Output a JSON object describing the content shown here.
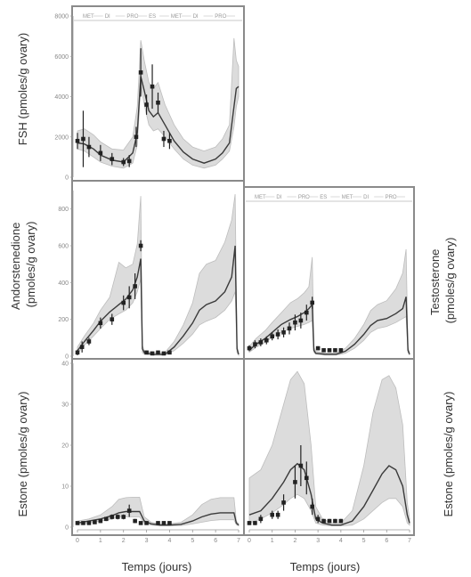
{
  "x_axis_label": "Temps (jours)",
  "colors": {
    "band": "#dcdcdc",
    "band_edge": "#bdbdbd",
    "line": "#3a3a3a",
    "marker": "#222222",
    "frame": "#8a8a8a",
    "axis": "#999999"
  },
  "chart_data": [
    {
      "id": "fsh",
      "type": "line",
      "ylabel": "FSH (pmoles/g ovary)",
      "xlabel": "",
      "xlim": [
        0,
        7
      ],
      "ylim": [
        0,
        8000
      ],
      "yticks": [
        0,
        2000,
        4000,
        6000,
        8000
      ],
      "ytick_labels": [
        "0",
        "2000",
        "4000",
        "6000",
        "8000"
      ],
      "xticks": [],
      "phase_labels": [
        "MET",
        "DI",
        "PRO",
        "ES",
        "MET",
        "DI",
        "PRO"
      ],
      "model": {
        "x": [
          0,
          0.3,
          0.7,
          1.0,
          1.5,
          2.0,
          2.4,
          2.6,
          2.75,
          2.9,
          3.1,
          3.3,
          3.5,
          3.8,
          4.2,
          4.6,
          5.0,
          5.5,
          6.0,
          6.3,
          6.6,
          6.8,
          6.9,
          7.0
        ],
        "lower": [
          1400,
          1300,
          1000,
          750,
          550,
          450,
          700,
          1600,
          4600,
          3600,
          2600,
          2300,
          2400,
          2000,
          1400,
          900,
          600,
          450,
          600,
          900,
          1300,
          2500,
          3500,
          4000
        ],
        "mean": [
          1700,
          1650,
          1400,
          1100,
          850,
          750,
          1200,
          2200,
          5000,
          4300,
          3300,
          3000,
          3200,
          2600,
          1800,
          1250,
          900,
          700,
          900,
          1200,
          1700,
          3500,
          4400,
          4500
        ],
        "upper": [
          2300,
          2400,
          2100,
          1750,
          1400,
          1350,
          2000,
          3500,
          6800,
          5800,
          4700,
          4400,
          4700,
          3600,
          2600,
          1900,
          1500,
          1300,
          1500,
          1900,
          2600,
          6900,
          5800,
          5500
        ]
      },
      "observations": {
        "x": [
          0,
          0.25,
          0.5,
          1.0,
          1.5,
          2.0,
          2.25,
          2.55,
          2.75,
          3.0,
          3.25,
          3.5,
          3.75,
          4.0
        ],
        "y": [
          1800,
          1900,
          1500,
          1200,
          900,
          750,
          800,
          2000,
          5200,
          3600,
          4500,
          3700,
          1900,
          1800
        ],
        "yerr": [
          400,
          1400,
          500,
          400,
          300,
          200,
          300,
          500,
          1200,
          500,
          1100,
          500,
          400,
          400
        ]
      }
    },
    {
      "id": "androstenedione",
      "type": "line",
      "ylabel": "Andorstenedione\n(pmoles/g ovary)",
      "xlabel": "",
      "xlim": [
        0,
        7
      ],
      "ylim": [
        0,
        900
      ],
      "yticks": [
        0,
        200,
        400,
        600,
        800
      ],
      "ytick_labels": [
        "0",
        "200",
        "400",
        "600",
        "800"
      ],
      "xticks": [],
      "phase_labels": [],
      "model": {
        "x": [
          0,
          0.3,
          0.7,
          1.0,
          1.4,
          1.8,
          2.1,
          2.4,
          2.6,
          2.75,
          2.82,
          2.9,
          3.3,
          3.8,
          4.2,
          4.6,
          5.0,
          5.3,
          5.6,
          6.0,
          6.4,
          6.7,
          6.85,
          6.93,
          7.0
        ],
        "lower": [
          15,
          60,
          110,
          150,
          200,
          230,
          250,
          290,
          350,
          420,
          20,
          10,
          5,
          5,
          30,
          70,
          120,
          170,
          190,
          210,
          250,
          300,
          350,
          20,
          5
        ],
        "mean": [
          30,
          80,
          140,
          190,
          240,
          280,
          310,
          360,
          430,
          530,
          40,
          20,
          10,
          10,
          50,
          110,
          180,
          250,
          280,
          300,
          350,
          430,
          600,
          40,
          10
        ],
        "upper": [
          50,
          110,
          180,
          250,
          320,
          510,
          480,
          500,
          610,
          870,
          60,
          30,
          20,
          20,
          80,
          170,
          290,
          450,
          500,
          520,
          620,
          740,
          880,
          60,
          15
        ]
      },
      "observations": {
        "x": [
          0.0,
          0.2,
          0.5,
          1.0,
          1.5,
          2.0,
          2.25,
          2.5,
          2.75,
          3.0,
          3.25,
          3.5,
          3.75,
          4.0
        ],
        "y": [
          20,
          50,
          80,
          180,
          200,
          290,
          320,
          380,
          600,
          20,
          15,
          20,
          15,
          20
        ],
        "yerr": [
          15,
          30,
          20,
          30,
          30,
          40,
          60,
          70,
          30,
          10,
          10,
          10,
          10,
          10
        ]
      }
    },
    {
      "id": "testosterone",
      "type": "line",
      "ylabel": "Testosterone\n(pmoles/g ovary)",
      "xlabel": "",
      "xlim": [
        0,
        7
      ],
      "ylim": [
        0,
        800
      ],
      "yticks": [],
      "ytick_labels": [],
      "xticks": [],
      "phase_labels": [
        "MET",
        "DI",
        "PRO",
        "ES",
        "MET",
        "DI",
        "PRO"
      ],
      "model": {
        "x": [
          0,
          0.3,
          0.7,
          1.0,
          1.4,
          1.8,
          2.1,
          2.4,
          2.6,
          2.75,
          2.82,
          2.9,
          3.3,
          3.8,
          4.2,
          4.6,
          5.0,
          5.3,
          5.6,
          6.0,
          6.4,
          6.7,
          6.85,
          6.93,
          7.0
        ],
        "lower": [
          20,
          45,
          70,
          95,
          120,
          140,
          150,
          160,
          170,
          180,
          20,
          10,
          5,
          5,
          15,
          40,
          80,
          120,
          140,
          150,
          170,
          190,
          200,
          20,
          5
        ],
        "mean": [
          30,
          60,
          90,
          120,
          160,
          185,
          200,
          220,
          240,
          260,
          30,
          15,
          10,
          10,
          25,
          60,
          110,
          155,
          180,
          190,
          215,
          240,
          300,
          30,
          10
        ],
        "upper": [
          50,
          90,
          130,
          170,
          220,
          270,
          290,
          320,
          350,
          500,
          45,
          25,
          15,
          15,
          40,
          90,
          160,
          230,
          260,
          280,
          340,
          420,
          540,
          45,
          15
        ]
      },
      "observations": {
        "x": [
          0.0,
          0.25,
          0.5,
          0.75,
          1.0,
          1.25,
          1.5,
          1.75,
          2.0,
          2.25,
          2.5,
          2.75,
          3.0,
          3.25,
          3.5,
          3.75,
          4.0
        ],
        "y": [
          40,
          60,
          70,
          80,
          100,
          110,
          120,
          140,
          170,
          180,
          220,
          270,
          40,
          30,
          30,
          30,
          30
        ],
        "yerr": [
          15,
          20,
          20,
          20,
          20,
          25,
          25,
          30,
          40,
          40,
          40,
          30,
          10,
          10,
          10,
          10,
          10
        ]
      }
    },
    {
      "id": "estrone_left",
      "type": "line",
      "ylabel": "Estone (pmoles/g ovary)",
      "xlabel": "Temps (jours)",
      "xlim": [
        0,
        7
      ],
      "ylim": [
        0,
        40
      ],
      "yticks": [
        0,
        10,
        20,
        30,
        40
      ],
      "ytick_labels": [
        "0",
        "10",
        "20",
        "30",
        "40"
      ],
      "xticks": [
        0,
        1,
        2,
        3,
        4,
        5,
        6,
        7
      ],
      "xtick_labels": [
        "0",
        "1",
        "2",
        "3",
        "4",
        "5",
        "6",
        "7"
      ],
      "phase_labels": [],
      "model": {
        "x": [
          0,
          0.5,
          1.0,
          1.5,
          1.8,
          2.1,
          2.4,
          2.7,
          2.9,
          3.2,
          3.6,
          4.0,
          4.5,
          5.0,
          5.4,
          5.8,
          6.2,
          6.6,
          6.8,
          6.9,
          7.0
        ],
        "lower": [
          0.5,
          1,
          1.5,
          2,
          2.5,
          2.5,
          2.5,
          2.5,
          1,
          0.5,
          0.3,
          0.3,
          0.4,
          0.8,
          1.2,
          1.6,
          1.8,
          1.8,
          1.8,
          0.6,
          0.3
        ],
        "mean": [
          1,
          1.5,
          2,
          2.8,
          3.5,
          3.8,
          3.8,
          3.8,
          1.5,
          0.8,
          0.5,
          0.5,
          0.7,
          1.5,
          2.5,
          3.2,
          3.5,
          3.5,
          3.5,
          1.0,
          0.5
        ],
        "upper": [
          1.5,
          2,
          3,
          5,
          6.8,
          7.2,
          7.3,
          7.3,
          2.5,
          1.2,
          0.8,
          0.8,
          1.2,
          3.0,
          5.5,
          6.8,
          7.2,
          7.2,
          7.2,
          1.5,
          0.8
        ]
      },
      "observations": {
        "x": [
          0.0,
          0.25,
          0.5,
          0.75,
          1.0,
          1.25,
          1.5,
          1.75,
          2.0,
          2.25,
          2.5,
          2.75,
          3.0,
          3.5,
          3.75,
          4.0
        ],
        "y": [
          1,
          1,
          1,
          1.2,
          1.5,
          2,
          2.5,
          2.5,
          2.5,
          4,
          1.5,
          1,
          1,
          1,
          1,
          1
        ],
        "yerr": [
          0.3,
          0.3,
          0.3,
          0.4,
          0.5,
          0.5,
          0.6,
          0.6,
          0.6,
          1.5,
          0.5,
          0.3,
          0.3,
          0.3,
          0.3,
          0.3
        ]
      }
    },
    {
      "id": "estrone_right",
      "type": "line",
      "ylabel": "Estone (pmoles/g ovary)",
      "xlabel": "Temps (jours)",
      "xlim": [
        0,
        7
      ],
      "ylim": [
        0,
        40
      ],
      "yticks": [],
      "ytick_labels": [],
      "xticks": [
        0,
        1,
        2,
        3,
        4,
        5,
        6,
        7
      ],
      "xtick_labels": [
        "0",
        "1",
        "2",
        "3",
        "4",
        "5",
        "6",
        "7"
      ],
      "phase_labels": [],
      "model": {
        "x": [
          0,
          0.5,
          1.0,
          1.5,
          1.8,
          2.1,
          2.4,
          2.7,
          2.9,
          3.2,
          3.6,
          4.0,
          4.5,
          5.0,
          5.4,
          5.8,
          6.1,
          6.4,
          6.7,
          6.9,
          7.0
        ],
        "lower": [
          1,
          2,
          3.5,
          5.5,
          7,
          8,
          7,
          4,
          1,
          0.5,
          0.3,
          0.3,
          0.5,
          2,
          4,
          6,
          7,
          7,
          5,
          1,
          0.5
        ],
        "mean": [
          3,
          4,
          7,
          11,
          14,
          15.5,
          14,
          8,
          2,
          1,
          0.5,
          0.5,
          1.5,
          5,
          9,
          13,
          15,
          14,
          10,
          3,
          1
        ],
        "upper": [
          12,
          14,
          20,
          30,
          36,
          38,
          35,
          20,
          5,
          2,
          1,
          1,
          4,
          15,
          28,
          36,
          37,
          34,
          25,
          6,
          2
        ]
      },
      "observations": {
        "x": [
          0.0,
          0.25,
          0.5,
          1.0,
          1.25,
          1.5,
          2.0,
          2.25,
          2.5,
          2.75,
          3.0,
          3.25,
          3.5,
          3.75,
          4.0
        ],
        "y": [
          1,
          1,
          2,
          3,
          3,
          6,
          11,
          15,
          12,
          5,
          2,
          1.5,
          1.5,
          1.5,
          1.5
        ],
        "yerr": [
          0.5,
          0.5,
          1,
          1,
          1,
          2,
          4,
          5,
          4,
          2,
          1,
          0.5,
          0.5,
          0.5,
          0.5
        ]
      }
    }
  ]
}
